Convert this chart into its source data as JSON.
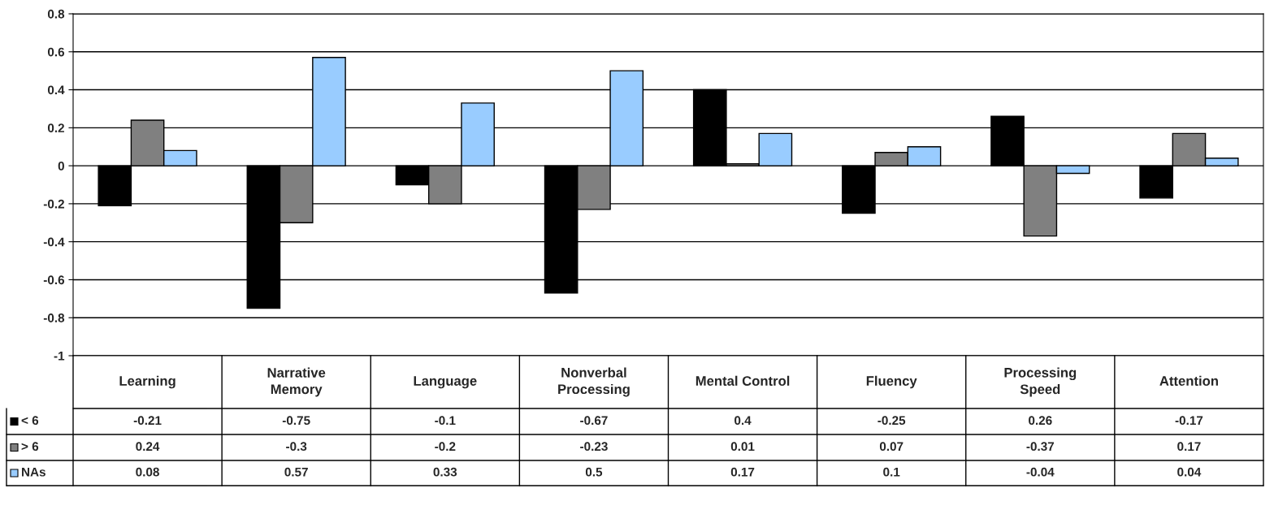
{
  "chart_data": {
    "type": "bar",
    "categories": [
      "Learning",
      "Narrative Memory",
      "Language",
      "Nonverbal Processing",
      "Mental Control",
      "Fluency",
      "Processing Speed",
      "Attention"
    ],
    "series": [
      {
        "name": "< 6",
        "color": "#000000",
        "values": [
          -0.21,
          -0.75,
          -0.1,
          -0.67,
          0.4,
          -0.25,
          0.26,
          -0.17
        ]
      },
      {
        "name": "> 6",
        "color": "#808080",
        "values": [
          0.24,
          -0.3,
          -0.2,
          -0.23,
          0.01,
          0.07,
          -0.37,
          0.17
        ]
      },
      {
        "name": "NAs",
        "color": "#99ccff",
        "values": [
          0.08,
          0.57,
          0.33,
          0.5,
          0.17,
          0.1,
          -0.04,
          0.04
        ]
      }
    ],
    "ylim": [
      -1,
      0.8
    ],
    "yticks": [
      -1,
      -0.8,
      -0.6,
      -0.4,
      -0.2,
      0,
      0.2,
      0.4,
      0.6,
      0.8
    ],
    "grid": "y",
    "data_labels": true,
    "legend": "bottom left"
  }
}
